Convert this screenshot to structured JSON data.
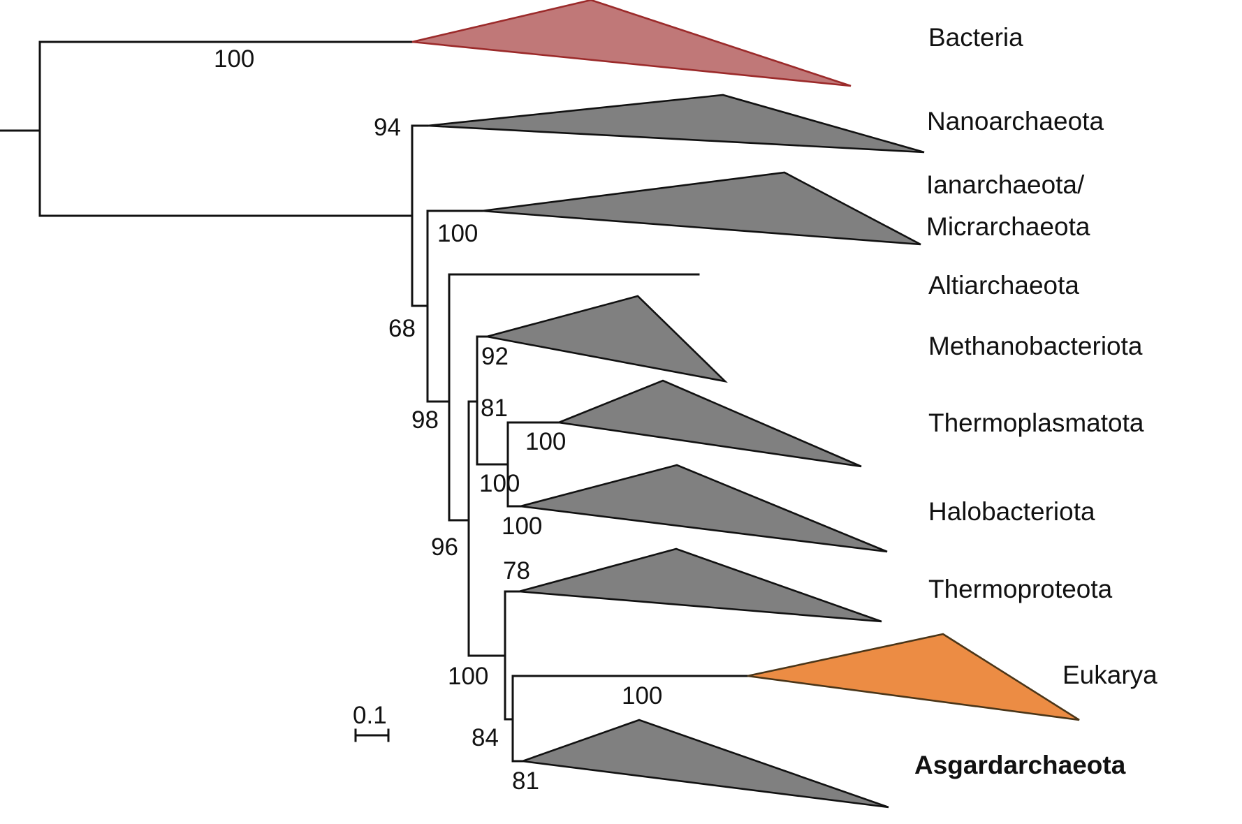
{
  "tree": {
    "clades": [
      {
        "id": "bacteria",
        "label": "Bacteria",
        "fill": "#c07878",
        "stroke": "#9b2a2a",
        "bold": false
      },
      {
        "id": "nanoarchaeota",
        "label": "Nanoarchaeota",
        "fill": "#808080",
        "stroke": "#111111",
        "bold": false
      },
      {
        "id": "ianarchaeota",
        "label": "Ianarchaeota/",
        "label2": "Micrarchaeota",
        "fill": "#808080",
        "stroke": "#111111",
        "bold": false
      },
      {
        "id": "altiarchaeota",
        "label": "Altiarchaeota",
        "fill": null,
        "stroke": "#111111",
        "bold": false
      },
      {
        "id": "methanobacteriota",
        "label": "Methanobacteriota",
        "fill": "#808080",
        "stroke": "#111111",
        "bold": false
      },
      {
        "id": "thermoplasmatota",
        "label": "Thermoplasmatota",
        "fill": "#808080",
        "stroke": "#111111",
        "bold": false
      },
      {
        "id": "halobacteriota",
        "label": "Halobacteriota",
        "fill": "#808080",
        "stroke": "#111111",
        "bold": false
      },
      {
        "id": "thermoproteota",
        "label": "Thermoproteota",
        "fill": "#808080",
        "stroke": "#111111",
        "bold": false
      },
      {
        "id": "eukarya",
        "label": "Eukarya",
        "fill": "#ec8c44",
        "stroke": "#4a3518",
        "bold": false
      },
      {
        "id": "asgardarchaeota",
        "label": "Asgardarchaeota",
        "fill": "#808080",
        "stroke": "#111111",
        "bold": true
      }
    ],
    "support_values": [
      {
        "id": "s-bacteria",
        "value": "100"
      },
      {
        "id": "s-nano",
        "value": "94"
      },
      {
        "id": "s-ian",
        "value": "100"
      },
      {
        "id": "s-68",
        "value": "68"
      },
      {
        "id": "s-methano",
        "value": "92"
      },
      {
        "id": "s-81a",
        "value": "81"
      },
      {
        "id": "s-thermoplasma",
        "value": "100"
      },
      {
        "id": "s-98",
        "value": "98"
      },
      {
        "id": "s-th-halo",
        "value": "100"
      },
      {
        "id": "s-halo",
        "value": "100"
      },
      {
        "id": "s-96",
        "value": "96"
      },
      {
        "id": "s-thermoprot",
        "value": "78"
      },
      {
        "id": "s-100c",
        "value": "100"
      },
      {
        "id": "s-eukarya",
        "value": "100"
      },
      {
        "id": "s-84",
        "value": "84"
      },
      {
        "id": "s-asgard",
        "value": "81"
      }
    ],
    "scale_bar": {
      "label": "0.1"
    }
  }
}
